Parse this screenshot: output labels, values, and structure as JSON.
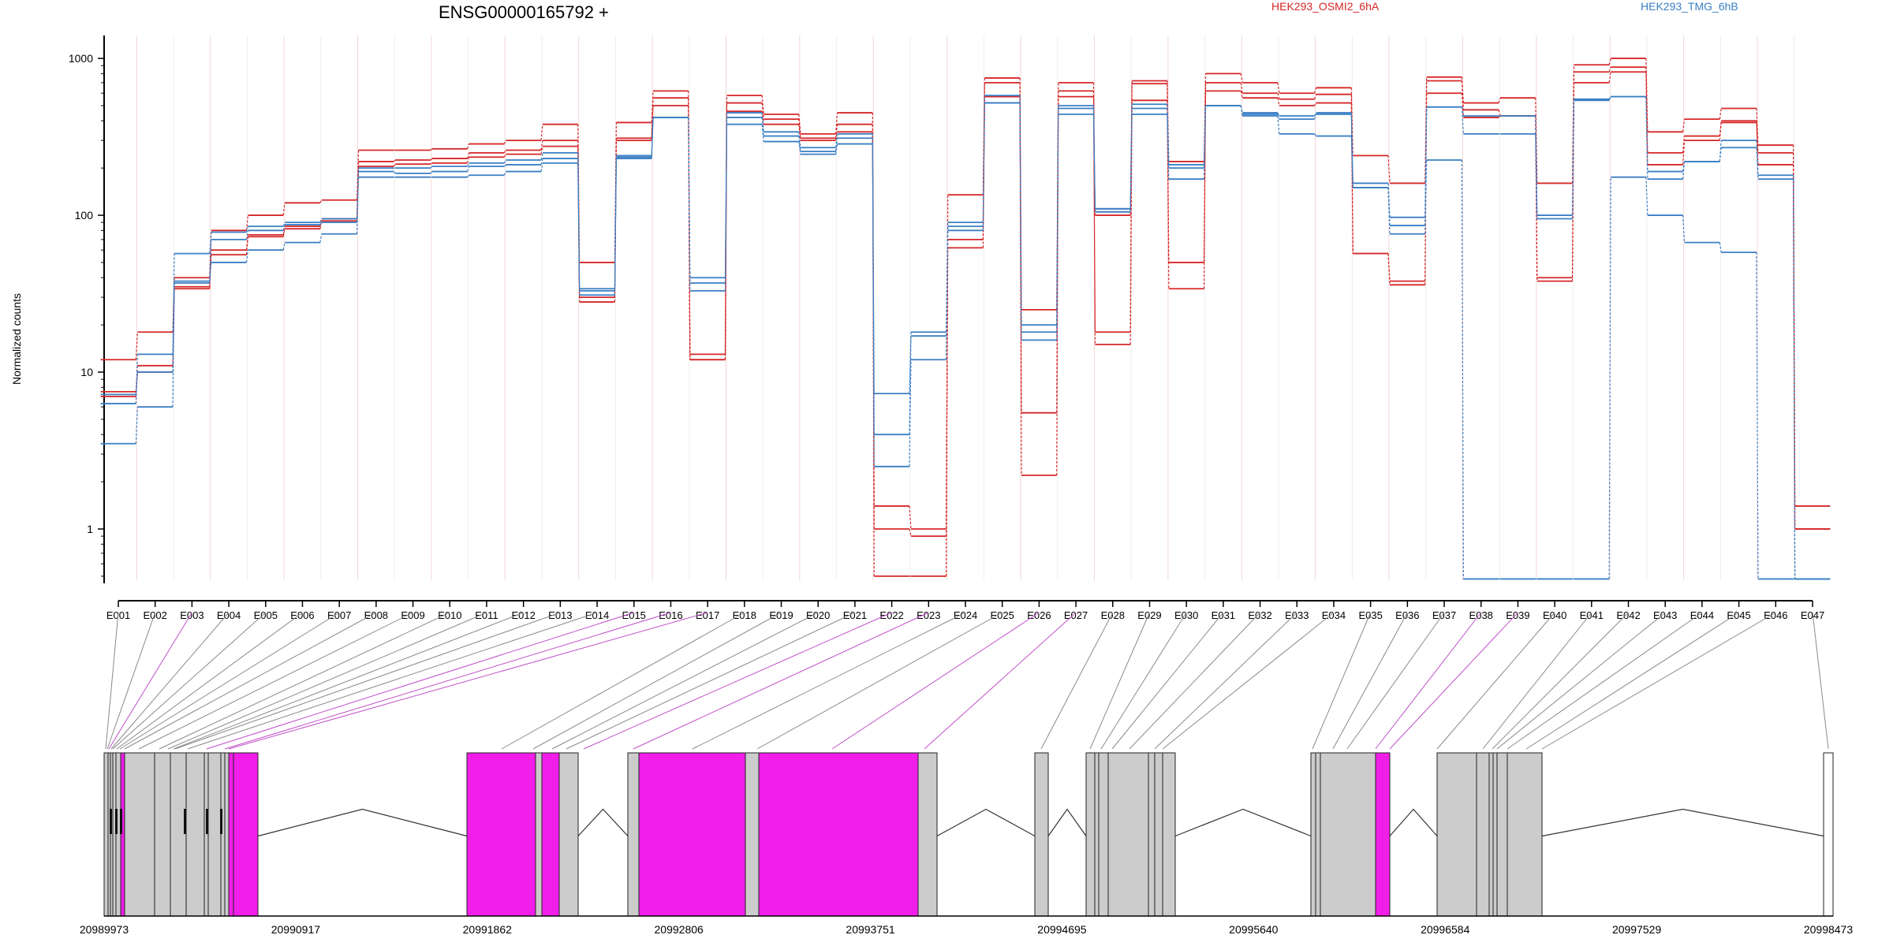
{
  "chart_data": {
    "type": "line",
    "title": "ENSG00000165792 +",
    "ylabel": "Normalized counts",
    "yscale": "log",
    "ylim": [
      0.45,
      1400
    ],
    "yticks": [
      {
        "v": 1,
        "label": "1"
      },
      {
        "v": 10,
        "label": "10"
      },
      {
        "v": 100,
        "label": "100"
      },
      {
        "v": 1000,
        "label": "1000"
      }
    ],
    "legend": [
      {
        "label": "HEK293_OSMI2_6hA",
        "color": "#d62728"
      },
      {
        "label": "HEK293_TMG_6hB",
        "color": "#3a7fc4"
      }
    ],
    "colors": {
      "OSMI2": "#d62728",
      "TMG": "#3a7fc4",
      "highlight": "#f01ee8",
      "exon_gray": "#cccccc"
    },
    "categories": [
      "E001",
      "E002",
      "E003",
      "E004",
      "E005",
      "E006",
      "E007",
      "E008",
      "E009",
      "E010",
      "E011",
      "E012",
      "E013",
      "E014",
      "E015",
      "E016",
      "E017",
      "E018",
      "E019",
      "E020",
      "E021",
      "E022",
      "E023",
      "E024",
      "E025",
      "E026",
      "E027",
      "E028",
      "E029",
      "E030",
      "E031",
      "E032",
      "E033",
      "E034",
      "E035",
      "E036",
      "E037",
      "E038",
      "E039",
      "E040",
      "E041",
      "E042",
      "E043",
      "E044",
      "E045",
      "E046",
      "E047"
    ],
    "highlighted_exons": [
      "E003",
      "E015",
      "E016",
      "E017",
      "E022",
      "E023",
      "E026",
      "E027",
      "E038",
      "E039"
    ],
    "series": [
      {
        "group": "OSMI2",
        "values": [
          12,
          18,
          40,
          80,
          100,
          120,
          125,
          260,
          260,
          265,
          285,
          300,
          380,
          50,
          390,
          620,
          12,
          580,
          440,
          330,
          450,
          0.5,
          0.5,
          135,
          750,
          5.5,
          700,
          18,
          720,
          220,
          800,
          700,
          600,
          650,
          240,
          160,
          760,
          520,
          560,
          160,
          910,
          1000,
          340,
          410,
          480,
          280,
          1.4
        ]
      },
      {
        "group": "OSMI2",
        "values": [
          7.5,
          11,
          35,
          60,
          75,
          85,
          95,
          220,
          225,
          230,
          250,
          260,
          300,
          30,
          310,
          560,
          13,
          520,
          410,
          310,
          380,
          1.4,
          1.0,
          70,
          700,
          25,
          620,
          100,
          690,
          50,
          700,
          600,
          550,
          590,
          57,
          38,
          720,
          470,
          430,
          40,
          820,
          880,
          250,
          320,
          400,
          250,
          1.0
        ]
      },
      {
        "group": "OSMI2",
        "values": [
          7.0,
          10,
          34,
          56,
          73,
          82,
          92,
          205,
          212,
          215,
          235,
          245,
          275,
          28,
          300,
          500,
          12,
          460,
          380,
          300,
          340,
          1.0,
          0.9,
          62,
          570,
          2.2,
          570,
          15,
          540,
          34,
          620,
          560,
          500,
          520,
          57,
          36,
          600,
          420,
          430,
          38,
          700,
          820,
          210,
          300,
          390,
          210,
          1.0
        ]
      },
      {
        "group": "TMG",
        "values": [
          6.3,
          13,
          57,
          78,
          85,
          90,
          95,
          200,
          200,
          205,
          215,
          225,
          250,
          34,
          240,
          420,
          40,
          450,
          340,
          270,
          330,
          7.3,
          18,
          90,
          580,
          20,
          500,
          110,
          510,
          210,
          500,
          450,
          430,
          450,
          160,
          97,
          490,
          430,
          430,
          100,
          550,
          570,
          170,
          220,
          270,
          170,
          0.48
        ]
      },
      {
        "group": "TMG",
        "values": [
          7.2,
          10,
          37,
          70,
          80,
          87,
          90,
          190,
          185,
          190,
          205,
          210,
          230,
          33,
          230,
          420,
          37,
          420,
          320,
          255,
          310,
          2.5,
          12,
          80,
          520,
          16,
          480,
          105,
          480,
          200,
          500,
          440,
          410,
          440,
          150,
          76,
          490,
          330,
          330,
          95,
          540,
          570,
          190,
          220,
          300,
          180,
          0.48
        ]
      },
      {
        "group": "TMG",
        "values": [
          3.5,
          6,
          38,
          50,
          60,
          67,
          76,
          175,
          175,
          175,
          180,
          190,
          215,
          31,
          235,
          420,
          33,
          380,
          295,
          245,
          285,
          4.0,
          17,
          85,
          520,
          18,
          440,
          110,
          440,
          170,
          500,
          430,
          330,
          320,
          150,
          86,
          225,
          0.48,
          0.48,
          0.48,
          0.48,
          175,
          100,
          67,
          58,
          0.48,
          0.48
        ]
      }
    ],
    "genomic_ticks": [
      "20989973",
      "20990917",
      "20991862",
      "20992806",
      "20993751",
      "20994695",
      "20995640",
      "20996584",
      "20997529",
      "20998473"
    ]
  }
}
